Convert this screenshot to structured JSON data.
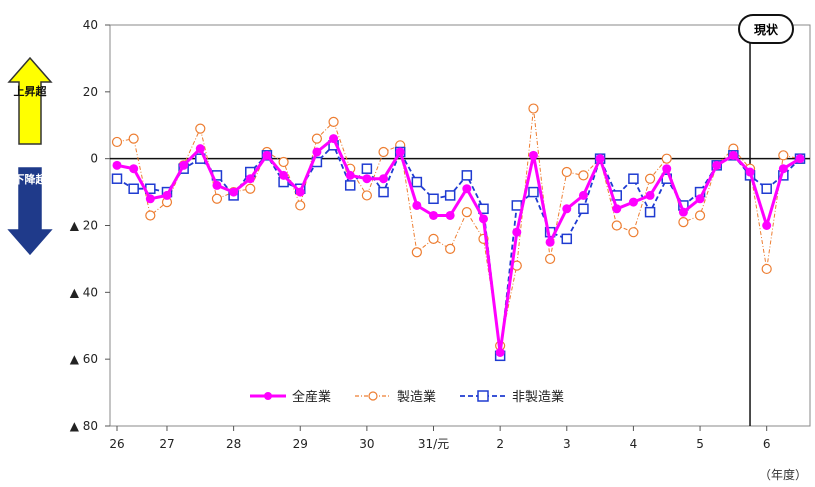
{
  "chart_data": {
    "type": "line",
    "x_category_labels": [
      "26",
      "27",
      "28",
      "29",
      "30",
      "31/元",
      "2",
      "3",
      "4",
      "5",
      "6"
    ],
    "ylim": [
      -80,
      40
    ],
    "y_ticks": [
      {
        "value": 40,
        "label": "40"
      },
      {
        "value": 20,
        "label": "20"
      },
      {
        "value": 0,
        "label": "0"
      },
      {
        "value": -20,
        "label": "▲ 20"
      },
      {
        "value": -40,
        "label": "▲ 40"
      },
      {
        "value": -60,
        "label": "▲ 60"
      },
      {
        "value": -80,
        "label": "▲ 80"
      }
    ],
    "series": [
      {
        "name": "全産業",
        "color": "#ff00ff",
        "values": [
          -2,
          -3,
          -12,
          -11,
          -2,
          3,
          -8,
          -10,
          -6,
          1,
          -5,
          -10,
          2,
          6,
          -5,
          -6,
          -6,
          2,
          -14,
          -17,
          -17,
          -9,
          -18,
          -58,
          -22,
          1,
          -25,
          -15,
          -11,
          0,
          -15,
          -13,
          -11,
          -3,
          -16,
          -12,
          -2,
          1,
          -4,
          -20,
          -3,
          0
        ]
      },
      {
        "name": "製造業",
        "color": "#ed7d31",
        "values": [
          5,
          6,
          -17,
          -13,
          -2,
          9,
          -12,
          -10,
          -9,
          2,
          -1,
          -14,
          6,
          11,
          -3,
          -11,
          2,
          4,
          -28,
          -24,
          -27,
          -16,
          -24,
          -56,
          -32,
          15,
          -30,
          -4,
          -5,
          0,
          -20,
          -22,
          -6,
          0,
          -19,
          -17,
          -2,
          3,
          -3,
          -33,
          1,
          0
        ]
      },
      {
        "name": "非製造業",
        "color": "#1f3bd1",
        "values": [
          -6,
          -9,
          -9,
          -10,
          -3,
          0,
          -5,
          -11,
          -4,
          1,
          -7,
          -9,
          -1,
          4,
          -8,
          -3,
          -10,
          2,
          -7,
          -12,
          -11,
          -5,
          -15,
          -59,
          -14,
          -10,
          -22,
          -24,
          -15,
          0,
          -11,
          -6,
          -16,
          -6,
          -14,
          -10,
          -2,
          1,
          -5,
          -9,
          -5,
          0
        ]
      }
    ],
    "current_label": "現状",
    "year_unit_label": "（年度）",
    "up_label": "上昇超",
    "down_label": "下降超",
    "grid": false,
    "legend_position": "bottom-center"
  }
}
